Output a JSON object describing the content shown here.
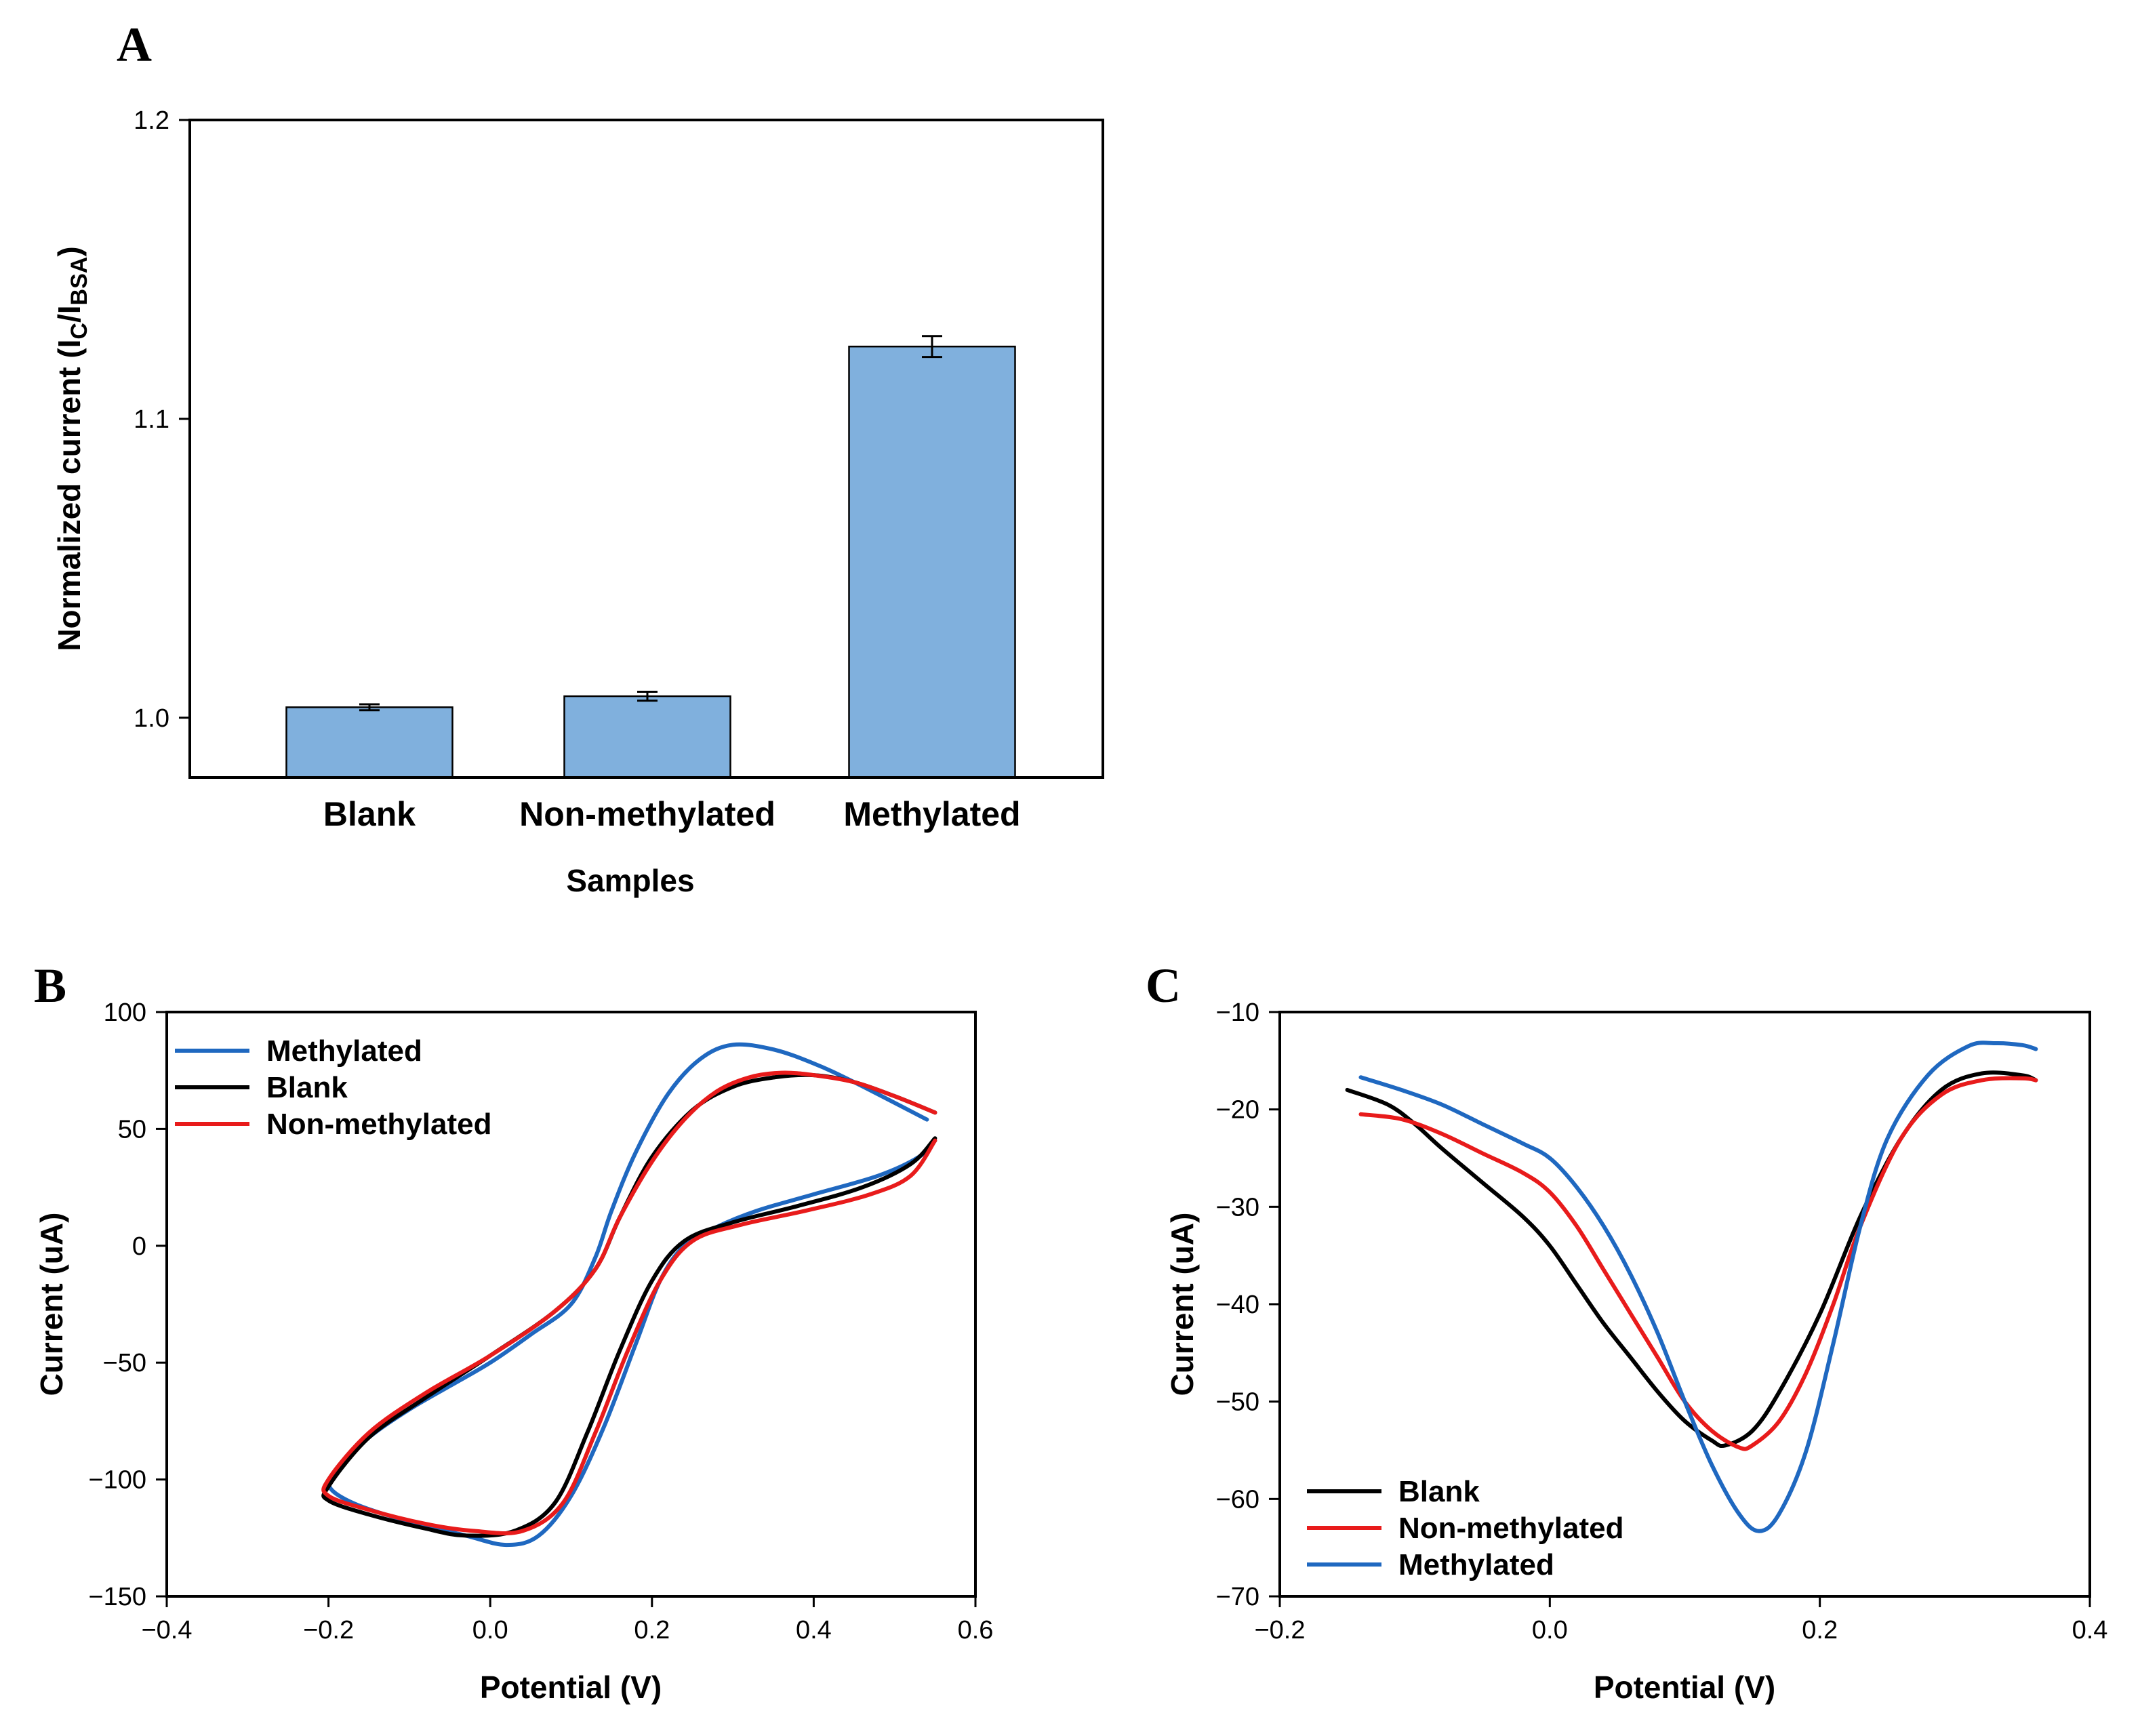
{
  "chart_data": [
    {
      "panel": "A",
      "type": "bar",
      "title": "",
      "xlabel": "Samples",
      "ylabel": "Normalized current (I",
      "ylabel_sub_c": "C",
      "ylabel_sep": "/I",
      "ylabel_sub_bsa": "BSA",
      "ylabel_close": ")",
      "ylim": [
        0.98,
        1.2
      ],
      "yticks": [
        "1.0",
        "1.1",
        "1.2"
      ],
      "ytick_values": [
        1.0,
        1.1,
        1.2
      ],
      "categories": [
        "Blank",
        "Non-methylated",
        "Methylated"
      ],
      "values": [
        1.0035,
        1.0072,
        1.1242
      ],
      "errors": [
        0.001,
        0.0015,
        0.0035
      ],
      "bar_color": "#80b0dd"
    },
    {
      "panel": "B",
      "type": "line",
      "xlabel": "Potential (V)",
      "ylabel": "Current (uA)",
      "xlim": [
        -0.4,
        0.6
      ],
      "ylim": [
        -150,
        100
      ],
      "xticks": [
        "−0.4",
        "−0.2",
        "0.0",
        "0.2",
        "0.4",
        "0.6"
      ],
      "xtick_values": [
        -0.4,
        -0.2,
        0.0,
        0.2,
        0.4,
        0.6
      ],
      "yticks": [
        "100",
        "50",
        "0",
        "−50",
        "−100",
        "−150"
      ],
      "ytick_values": [
        100,
        50,
        0,
        -50,
        -100,
        -150
      ],
      "legend_position": "top-left",
      "legend": [
        "Methylated",
        "Blank",
        "Non-methylated"
      ],
      "series": [
        {
          "name": "Methylated",
          "color": "#1f68c0",
          "points": [
            [
              0.54,
              54
            ],
            [
              0.45,
              70
            ],
            [
              0.4,
              78
            ],
            [
              0.35,
              84
            ],
            [
              0.3,
              86
            ],
            [
              0.26,
              80
            ],
            [
              0.22,
              65
            ],
            [
              0.18,
              40
            ],
            [
              0.15,
              15
            ],
            [
              0.13,
              -5
            ],
            [
              0.1,
              -25
            ],
            [
              0.05,
              -38
            ],
            [
              0.0,
              -50
            ],
            [
              -0.05,
              -60
            ],
            [
              -0.1,
              -70
            ],
            [
              -0.15,
              -82
            ],
            [
              -0.18,
              -93
            ],
            [
              -0.2,
              -102
            ],
            [
              -0.17,
              -110
            ],
            [
              -0.1,
              -118
            ],
            [
              -0.03,
              -124
            ],
            [
              0.02,
              -128
            ],
            [
              0.06,
              -124
            ],
            [
              0.1,
              -107
            ],
            [
              0.14,
              -78
            ],
            [
              0.18,
              -42
            ],
            [
              0.21,
              -15
            ],
            [
              0.24,
              0
            ],
            [
              0.28,
              8
            ],
            [
              0.33,
              15
            ],
            [
              0.4,
              22
            ],
            [
              0.48,
              30
            ],
            [
              0.53,
              38
            ],
            [
              0.55,
              45
            ]
          ]
        },
        {
          "name": "Blank",
          "color": "#000000",
          "points": [
            [
              0.55,
              57
            ],
            [
              0.5,
              64
            ],
            [
              0.45,
              70
            ],
            [
              0.4,
              73
            ],
            [
              0.35,
              72
            ],
            [
              0.3,
              68
            ],
            [
              0.25,
              58
            ],
            [
              0.2,
              38
            ],
            [
              0.16,
              12
            ],
            [
              0.13,
              -10
            ],
            [
              0.08,
              -28
            ],
            [
              0.0,
              -47
            ],
            [
              -0.08,
              -65
            ],
            [
              -0.15,
              -82
            ],
            [
              -0.2,
              -103
            ],
            [
              -0.2,
              -109
            ],
            [
              -0.15,
              -115
            ],
            [
              -0.08,
              -121
            ],
            [
              -0.03,
              -124
            ],
            [
              0.03,
              -122
            ],
            [
              0.08,
              -110
            ],
            [
              0.12,
              -80
            ],
            [
              0.16,
              -45
            ],
            [
              0.2,
              -15
            ],
            [
              0.24,
              2
            ],
            [
              0.3,
              10
            ],
            [
              0.38,
              17
            ],
            [
              0.46,
              25
            ],
            [
              0.52,
              35
            ],
            [
              0.55,
              46
            ]
          ]
        },
        {
          "name": "Non-methylated",
          "color": "#e81b1b",
          "points": [
            [
              0.55,
              57
            ],
            [
              0.5,
              64
            ],
            [
              0.45,
              70
            ],
            [
              0.4,
              73
            ],
            [
              0.36,
              74
            ],
            [
              0.32,
              72
            ],
            [
              0.28,
              66
            ],
            [
              0.24,
              54
            ],
            [
              0.2,
              36
            ],
            [
              0.16,
              12
            ],
            [
              0.13,
              -10
            ],
            [
              0.08,
              -28
            ],
            [
              0.0,
              -47
            ],
            [
              -0.08,
              -63
            ],
            [
              -0.15,
              -80
            ],
            [
              -0.2,
              -100
            ],
            [
              -0.2,
              -107
            ],
            [
              -0.15,
              -113
            ],
            [
              -0.08,
              -119
            ],
            [
              -0.02,
              -122
            ],
            [
              0.04,
              -122
            ],
            [
              0.09,
              -110
            ],
            [
              0.13,
              -80
            ],
            [
              0.17,
              -45
            ],
            [
              0.21,
              -15
            ],
            [
              0.25,
              2
            ],
            [
              0.31,
              9
            ],
            [
              0.39,
              15
            ],
            [
              0.47,
              22
            ],
            [
              0.52,
              30
            ],
            [
              0.55,
              45
            ]
          ]
        }
      ]
    },
    {
      "panel": "C",
      "type": "line",
      "xlabel": "Potential (V)",
      "ylabel": "Current (uA)",
      "xlim": [
        -0.2,
        0.4
      ],
      "ylim": [
        -70,
        -10
      ],
      "xticks": [
        "−0.2",
        "0.0",
        "0.2",
        "0.4"
      ],
      "xtick_values": [
        -0.2,
        0.0,
        0.2,
        0.4
      ],
      "yticks": [
        "−10",
        "−20",
        "−30",
        "−40",
        "−50",
        "−60",
        "−70"
      ],
      "ytick_values": [
        -10,
        -20,
        -30,
        -40,
        -50,
        -60,
        -70
      ],
      "legend_position": "bottom-left",
      "legend": [
        "Blank",
        "Non-methylated",
        "Methylated"
      ],
      "series": [
        {
          "name": "Blank",
          "color": "#000000",
          "points": [
            [
              -0.15,
              -18
            ],
            [
              -0.12,
              -19.5
            ],
            [
              -0.1,
              -21.5
            ],
            [
              -0.08,
              -24
            ],
            [
              -0.05,
              -27.5
            ],
            [
              -0.02,
              -31
            ],
            [
              0.0,
              -34
            ],
            [
              0.02,
              -38
            ],
            [
              0.04,
              -42
            ],
            [
              0.06,
              -45.5
            ],
            [
              0.08,
              -49
            ],
            [
              0.1,
              -52
            ],
            [
              0.12,
              -54
            ],
            [
              0.13,
              -54.5
            ],
            [
              0.15,
              -53
            ],
            [
              0.17,
              -49
            ],
            [
              0.2,
              -41
            ],
            [
              0.23,
              -31
            ],
            [
              0.26,
              -23
            ],
            [
              0.29,
              -18
            ],
            [
              0.32,
              -16.3
            ],
            [
              0.35,
              -16.5
            ],
            [
              0.36,
              -17
            ]
          ]
        },
        {
          "name": "Non-methylated",
          "color": "#e81b1b",
          "points": [
            [
              -0.14,
              -20.5
            ],
            [
              -0.11,
              -21
            ],
            [
              -0.08,
              -22.5
            ],
            [
              -0.05,
              -24.5
            ],
            [
              -0.02,
              -26.5
            ],
            [
              0.0,
              -28.5
            ],
            [
              0.02,
              -32
            ],
            [
              0.04,
              -36.5
            ],
            [
              0.06,
              -41
            ],
            [
              0.08,
              -45.5
            ],
            [
              0.1,
              -50
            ],
            [
              0.12,
              -53
            ],
            [
              0.14,
              -54.7
            ],
            [
              0.15,
              -54.5
            ],
            [
              0.17,
              -52
            ],
            [
              0.19,
              -47
            ],
            [
              0.21,
              -40
            ],
            [
              0.23,
              -32
            ],
            [
              0.26,
              -23
            ],
            [
              0.29,
              -18.5
            ],
            [
              0.32,
              -17
            ],
            [
              0.35,
              -16.8
            ],
            [
              0.36,
              -17
            ]
          ]
        },
        {
          "name": "Methylated",
          "color": "#1f68c0",
          "points": [
            [
              -0.14,
              -16.7
            ],
            [
              -0.11,
              -18
            ],
            [
              -0.08,
              -19.5
            ],
            [
              -0.05,
              -21.5
            ],
            [
              -0.02,
              -23.5
            ],
            [
              0.0,
              -25
            ],
            [
              0.02,
              -28
            ],
            [
              0.04,
              -32
            ],
            [
              0.06,
              -37
            ],
            [
              0.08,
              -43
            ],
            [
              0.1,
              -50
            ],
            [
              0.12,
              -56.5
            ],
            [
              0.14,
              -61.5
            ],
            [
              0.155,
              -63.3
            ],
            [
              0.17,
              -61.5
            ],
            [
              0.19,
              -55
            ],
            [
              0.21,
              -44
            ],
            [
              0.23,
              -32
            ],
            [
              0.25,
              -23
            ],
            [
              0.28,
              -16.5
            ],
            [
              0.31,
              -13.5
            ],
            [
              0.33,
              -13.2
            ],
            [
              0.35,
              -13.4
            ],
            [
              0.36,
              -13.8
            ]
          ]
        }
      ]
    }
  ]
}
